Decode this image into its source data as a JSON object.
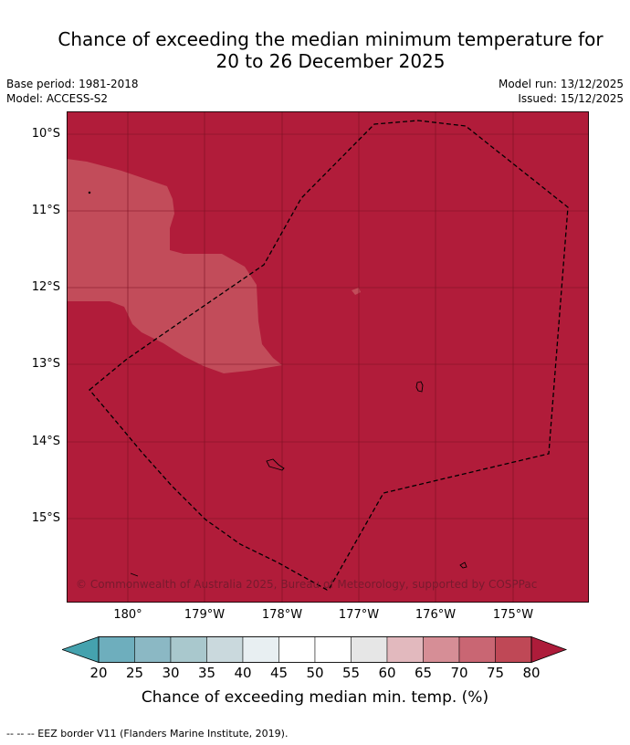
{
  "title": {
    "line1": "Chance of exceeding the median minimum temperature for",
    "line2": "20 to 26 December 2025"
  },
  "meta": {
    "base_period": "Base period: 1981-2018",
    "model": "Model: ACCESS-S2",
    "model_run": "Model run: 13/12/2025",
    "issued": "Issued: 15/12/2025"
  },
  "map": {
    "lat_labels": [
      "10°S",
      "11°S",
      "12°S",
      "13°S",
      "14°S",
      "15°S"
    ],
    "lon_labels": [
      "180°",
      "179°W",
      "178°W",
      "177°W",
      "176°W",
      "175°W"
    ],
    "copyright": "© Commonwealth of Australia 2025, Bureau of Meteorology, supported by COSPPac",
    "colors": {
      "dominant": "#b11c3a",
      "secondary_patch": "#c24c5a",
      "gridline": "#7a1022",
      "eez_border": "#000000"
    }
  },
  "colorbar": {
    "ticks": [
      "20",
      "25",
      "30",
      "35",
      "40",
      "45",
      "50",
      "55",
      "60",
      "65",
      "70",
      "75",
      "80"
    ],
    "colors": [
      "#45a2ae",
      "#6eaebd",
      "#8bb8c4",
      "#a9c8cd",
      "#cad9dd",
      "#e8eff2",
      "#ffffff",
      "#ffffff",
      "#e6e6e6",
      "#e2b9be",
      "#d68e96",
      "#c96673",
      "#bf4856",
      "#ad1c3a"
    ],
    "title": "Chance of exceeding median min. temp. (%)"
  },
  "footnote": "--  --  -- EEZ border V11 (Flanders Marine Institute, 2019)."
}
